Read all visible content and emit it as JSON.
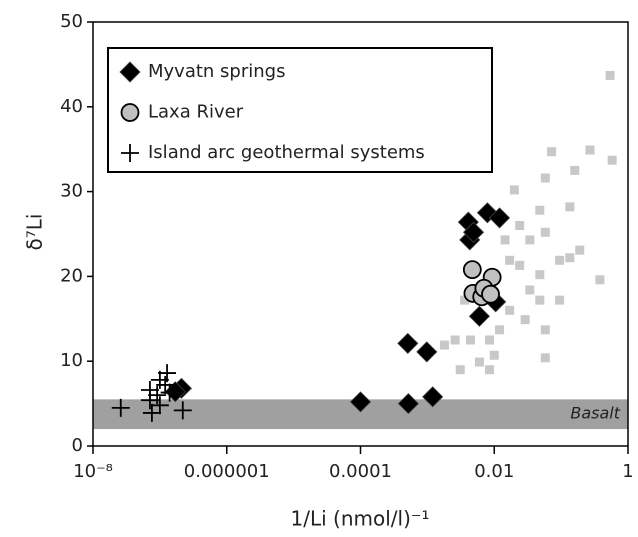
{
  "chart_data": {
    "type": "scatter",
    "x_label": "1/Li (nmol/l)⁻¹",
    "y_label": "δ⁷Li",
    "xscale": "log",
    "xlim": [
      1e-08,
      1
    ],
    "xticks": [
      {
        "value": 1e-08,
        "label": "10⁻⁸"
      },
      1e-06,
      0.0001,
      0.01,
      1
    ],
    "ylim": [
      0,
      50
    ],
    "yticks": [
      0,
      10,
      20,
      30,
      40,
      50
    ],
    "bands": [
      {
        "label": "Basalt",
        "ylim": [
          2,
          5.5
        ],
        "color": "#a0a0a0"
      }
    ],
    "legend": "upper left",
    "series": [
      {
        "marker": "square",
        "color": "#c8c8c8",
        "x": [
          0.54,
          0.58,
          0.27,
          0.16,
          0.072,
          0.058,
          0.135,
          0.048,
          0.02,
          0.024,
          0.0145,
          0.034,
          0.058,
          0.095,
          0.135,
          0.38,
          0.048,
          0.024,
          0.017,
          0.034,
          0.095,
          0.048,
          0.017,
          0.029,
          0.058,
          0.012,
          0.0085,
          0.0044,
          0.0026,
          0.0018,
          0.006,
          0.01,
          0.0085,
          0.0031,
          0.0036,
          0.058,
          0.19
        ],
        "values": [
          43.7,
          33.7,
          34.9,
          32.5,
          34.7,
          31.6,
          28.2,
          27.8,
          30.2,
          26.0,
          24.3,
          24.3,
          25.2,
          21.9,
          22.2,
          19.6,
          20.2,
          21.3,
          21.9,
          18.4,
          17.2,
          17.2,
          16.0,
          14.9,
          13.7,
          13.7,
          12.5,
          12.5,
          12.5,
          11.9,
          9.9,
          10.7,
          9.0,
          9.0,
          17.2,
          10.4,
          23.1
        ]
      },
      {
        "name": "Myvatn springs",
        "marker": "diamond",
        "color": "#000000",
        "x": [
          0.0001,
          0.00052,
          0.0012,
          0.00051,
          0.00098,
          0.0041,
          0.0043,
          0.0049,
          0.0079,
          0.012,
          0.006,
          0.0105,
          2.1e-07,
          1.7e-07
        ],
        "values": [
          5.2,
          5.0,
          5.8,
          12.1,
          11.1,
          26.4,
          24.3,
          25.2,
          27.5,
          26.9,
          15.3,
          17.0,
          6.8,
          6.4
        ]
      },
      {
        "name": "Laxa River",
        "marker": "circle",
        "color": "#c0c0c0",
        "x": [
          0.0047,
          0.0048,
          0.0065,
          0.0093,
          0.007,
          0.0088
        ],
        "values": [
          20.8,
          18.0,
          17.6,
          19.9,
          18.6,
          17.9
        ]
      },
      {
        "name": "Island arc geothermal systems",
        "marker": "plus",
        "color": "#000000",
        "x": [
          2.6e-08,
          7.1e-08,
          7.6e-08,
          7.1e-08,
          1e-07,
          1.28e-07,
          9.1e-08,
          1.4e-07,
          2.2e-07,
          1e-07,
          1.2e-07
        ],
        "values": [
          4.5,
          5.4,
          3.9,
          6.6,
          7.8,
          8.6,
          6.0,
          6.3,
          4.2,
          4.8,
          7.2
        ]
      }
    ]
  }
}
